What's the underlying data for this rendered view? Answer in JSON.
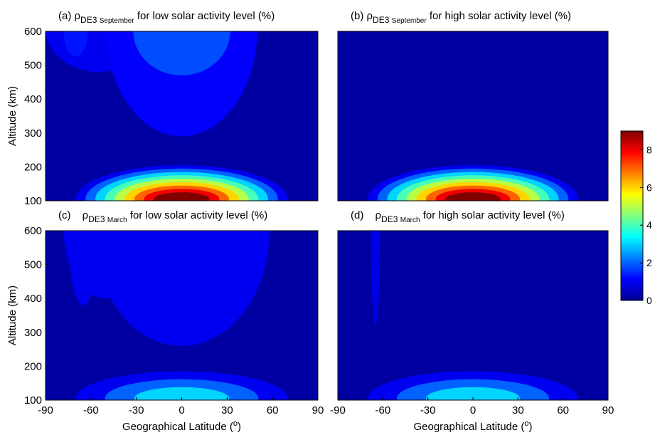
{
  "chart_data": [
    {
      "type": "heatmap",
      "panel": "(a)",
      "title": {
        "symbol": "ρ",
        "sub1": "DE3",
        "sub2": "September",
        "rest": "for low solar activity level (%)"
      },
      "xlim": [
        -90,
        90
      ],
      "ylim": [
        100,
        600
      ],
      "yticks": [
        100,
        200,
        300,
        400,
        500,
        600
      ],
      "ylabel": "Altitude (km)",
      "xlabel": "",
      "peak": {
        "lat": 0,
        "alt": 105,
        "value": 9
      },
      "features": "Strong maximum (~9%) centred at equator near 100 km; ~1-2% values above 300 km between about 45°S and 45°N"
    },
    {
      "type": "heatmap",
      "panel": "(b)",
      "title": {
        "symbol": "ρ",
        "sub1": "DE3",
        "sub2": "September",
        "rest": "for high solar activity level (%)"
      },
      "xlim": [
        -90,
        90
      ],
      "ylim": [
        100,
        600
      ],
      "ylabel": "",
      "xlabel": "",
      "peak": {
        "lat": 0,
        "alt": 105,
        "value": 9
      },
      "features": "Strong maximum (~9%) at equator near 100 km; background below 1% above 200 km"
    },
    {
      "type": "heatmap",
      "panel": "(c)",
      "title": {
        "symbol": "ρ",
        "sub1": "DE3",
        "sub2": "March",
        "rest": "for low solar activity level (%)"
      },
      "xlim": [
        -90,
        90
      ],
      "ylim": [
        100,
        600
      ],
      "xticks": [
        -90,
        -60,
        -30,
        0,
        30,
        60,
        90
      ],
      "yticks": [
        100,
        200,
        300,
        400,
        500,
        600
      ],
      "ylabel": "Altitude (km)",
      "xlabel": "Geographical Latitude (°)",
      "peak": {
        "lat": 0,
        "alt": 105,
        "value": 3
      },
      "features": "Maximum (~3%) at equator near 100 km; ~1% values above 250 km"
    },
    {
      "type": "heatmap",
      "panel": "(d)",
      "title": {
        "symbol": "ρ",
        "sub1": "DE3",
        "sub2": "March",
        "rest": "for high solar activity level (%)"
      },
      "xlim": [
        -90,
        90
      ],
      "ylim": [
        100,
        600
      ],
      "xticks": [
        -90,
        -60,
        -30,
        0,
        30,
        60,
        90
      ],
      "ylabel": "",
      "xlabel": "Geographical Latitude (°)",
      "peak": {
        "lat": 0,
        "alt": 105,
        "value": 3
      },
      "features": "Maximum (~3%) at equator near 100 km; background below 1% elsewhere"
    }
  ],
  "colorbar": {
    "colormap": "jet",
    "range": [
      0,
      9
    ],
    "ticks": [
      0,
      2,
      4,
      6,
      8
    ]
  },
  "colors": {
    "background_level": "#00008f",
    "level_1": "#0000cc",
    "level_2": "#0a3ff5"
  }
}
